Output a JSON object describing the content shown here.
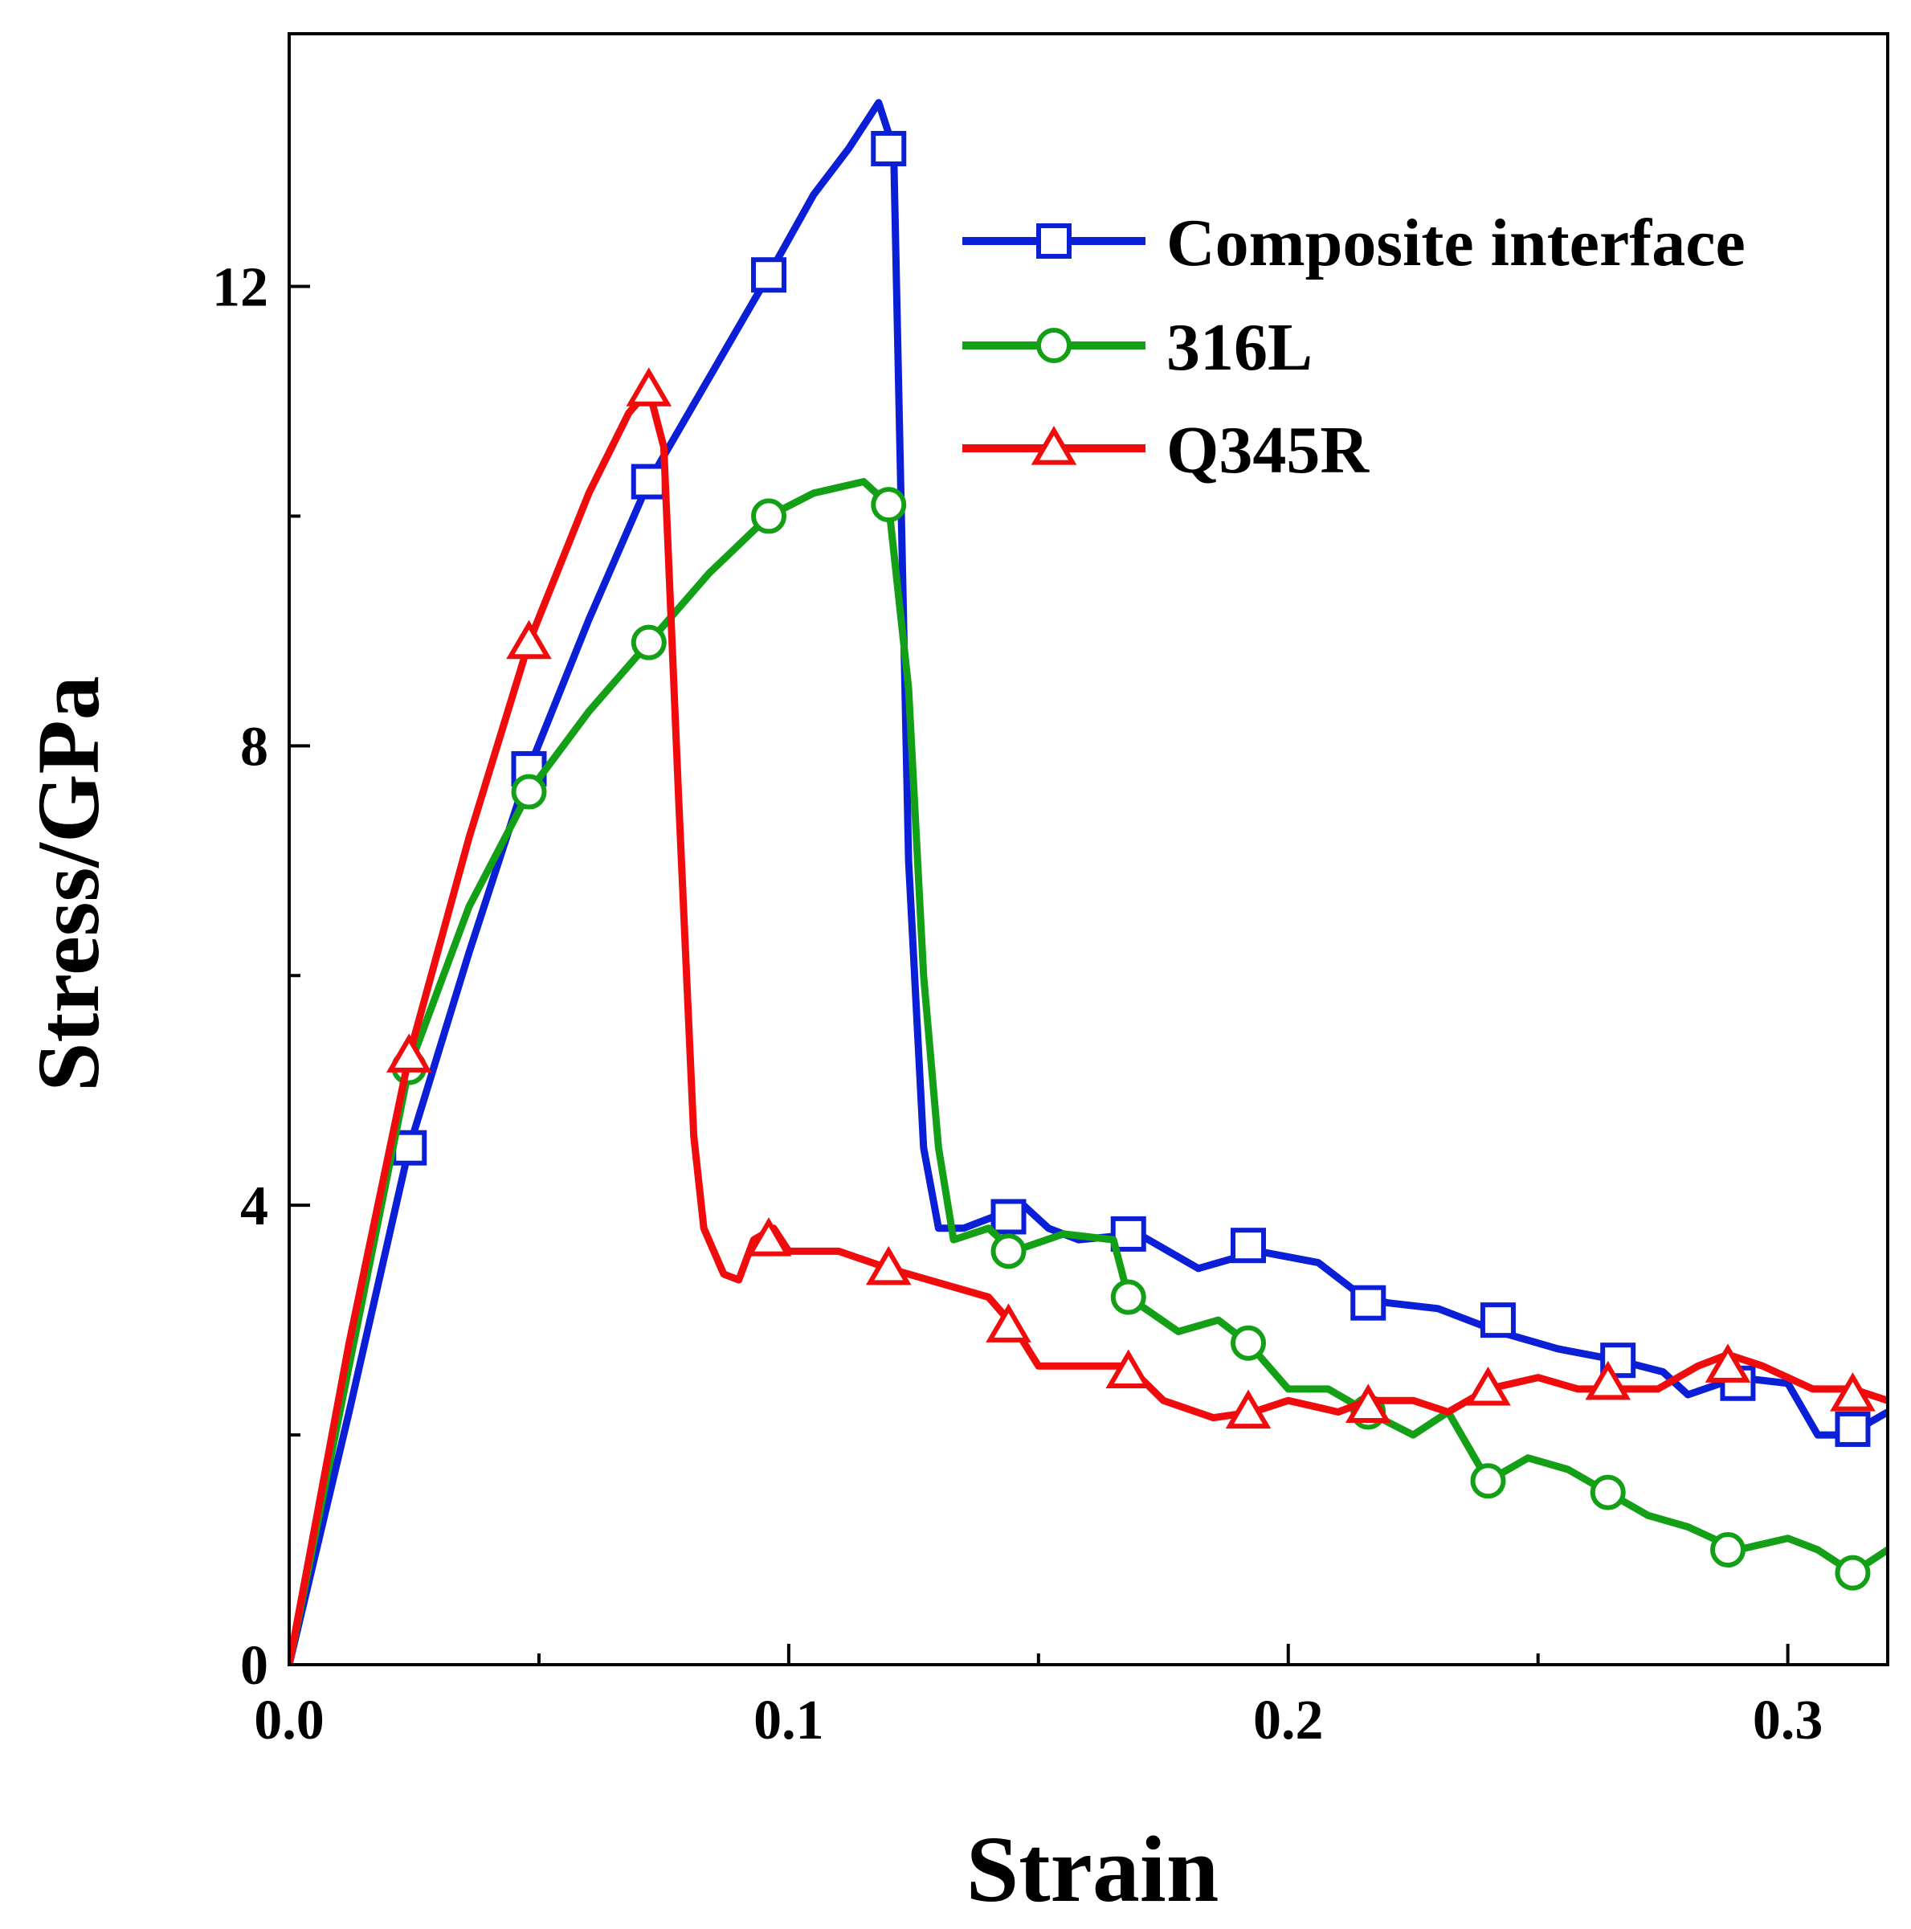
{
  "chart_data": {
    "type": "line",
    "title": "",
    "xlabel": "Strain",
    "ylabel": "Stress/GPa",
    "xlim": [
      0.0,
      0.32
    ],
    "ylim": [
      0,
      14.2
    ],
    "xticks": [
      0.0,
      0.1,
      0.2,
      0.3
    ],
    "xtick_labels": [
      "0.0",
      "0.1",
      "0.2",
      "0.3"
    ],
    "xminor": [
      0.05,
      0.15,
      0.25
    ],
    "yticks": [
      0,
      4,
      8,
      12
    ],
    "ytick_labels": [
      "0",
      "4",
      "8",
      "12"
    ],
    "yminor": [
      2,
      6,
      10
    ],
    "grid": false,
    "legend_position": "top-right",
    "series": [
      {
        "name": "Composite interface",
        "color": "#0a1fd6",
        "marker": "square",
        "x": [
          0.0,
          0.012,
          0.024,
          0.036,
          0.048,
          0.06,
          0.072,
          0.084,
          0.096,
          0.105,
          0.112,
          0.118,
          0.121,
          0.124,
          0.127,
          0.13,
          0.135,
          0.147,
          0.152,
          0.158,
          0.17,
          0.182,
          0.194,
          0.206,
          0.215,
          0.22,
          0.23,
          0.242,
          0.254,
          0.266,
          0.275,
          0.28,
          0.29,
          0.3,
          0.306,
          0.312,
          0.32
        ],
        "y": [
          0,
          2.2,
          4.5,
          6.2,
          7.8,
          9.1,
          10.3,
          11.2,
          12.1,
          12.8,
          13.2,
          13.6,
          13.2,
          7.0,
          4.5,
          3.8,
          3.8,
          4.0,
          3.8,
          3.7,
          3.75,
          3.45,
          3.6,
          3.5,
          3.2,
          3.15,
          3.1,
          2.9,
          2.75,
          2.65,
          2.55,
          2.35,
          2.5,
          2.45,
          2.0,
          2.0,
          2.2
        ],
        "marker_x": [
          0.024,
          0.048,
          0.072,
          0.096,
          0.12,
          0.144,
          0.168,
          0.192,
          0.216,
          0.242,
          0.266,
          0.29,
          0.313
        ],
        "marker_y": [
          4.5,
          7.8,
          10.3,
          12.1,
          13.2,
          3.9,
          3.75,
          3.65,
          3.15,
          3.0,
          2.65,
          2.45,
          2.05
        ]
      },
      {
        "name": "316L",
        "color": "#14a016",
        "marker": "circle",
        "x": [
          0.0,
          0.012,
          0.024,
          0.036,
          0.048,
          0.06,
          0.072,
          0.084,
          0.096,
          0.105,
          0.115,
          0.12,
          0.124,
          0.127,
          0.13,
          0.133,
          0.14,
          0.145,
          0.155,
          0.165,
          0.168,
          0.178,
          0.186,
          0.192,
          0.2,
          0.208,
          0.216,
          0.225,
          0.232,
          0.24,
          0.248,
          0.256,
          0.264,
          0.272,
          0.28,
          0.29,
          0.3,
          0.306,
          0.313,
          0.32
        ],
        "y": [
          0,
          2.6,
          5.2,
          6.6,
          7.6,
          8.3,
          8.9,
          9.5,
          10.0,
          10.2,
          10.3,
          10.1,
          8.5,
          6.0,
          4.5,
          3.7,
          3.8,
          3.6,
          3.75,
          3.7,
          3.2,
          2.9,
          3.0,
          2.8,
          2.4,
          2.4,
          2.2,
          2.0,
          2.2,
          1.6,
          1.8,
          1.7,
          1.5,
          1.3,
          1.2,
          1.0,
          1.1,
          1.0,
          0.8,
          1.0
        ],
        "marker_x": [
          0.024,
          0.048,
          0.072,
          0.096,
          0.12,
          0.144,
          0.168,
          0.192,
          0.216,
          0.24,
          0.264,
          0.288,
          0.313
        ],
        "marker_y": [
          5.2,
          7.6,
          8.9,
          10.0,
          10.1,
          3.6,
          3.2,
          2.8,
          2.2,
          1.6,
          1.5,
          1.0,
          0.8
        ]
      },
      {
        "name": "Q345R",
        "color": "#f00c0c",
        "marker": "triangle",
        "x": [
          0.0,
          0.012,
          0.024,
          0.036,
          0.048,
          0.06,
          0.068,
          0.072,
          0.075,
          0.078,
          0.081,
          0.083,
          0.087,
          0.09,
          0.093,
          0.097,
          0.1,
          0.11,
          0.12,
          0.132,
          0.14,
          0.145,
          0.15,
          0.16,
          0.168,
          0.175,
          0.185,
          0.193,
          0.2,
          0.21,
          0.216,
          0.225,
          0.232,
          0.24,
          0.25,
          0.258,
          0.266,
          0.274,
          0.282,
          0.288,
          0.295,
          0.305,
          0.313,
          0.32
        ],
        "y": [
          0,
          2.8,
          5.3,
          7.2,
          8.9,
          10.2,
          10.9,
          11.1,
          10.6,
          7.5,
          4.6,
          3.8,
          3.4,
          3.35,
          3.7,
          3.8,
          3.6,
          3.6,
          3.45,
          3.3,
          3.2,
          2.95,
          2.6,
          2.6,
          2.6,
          2.3,
          2.15,
          2.2,
          2.3,
          2.2,
          2.3,
          2.3,
          2.2,
          2.4,
          2.5,
          2.4,
          2.4,
          2.4,
          2.6,
          2.7,
          2.6,
          2.4,
          2.4,
          2.3
        ],
        "marker_x": [
          0.024,
          0.048,
          0.072,
          0.096,
          0.12,
          0.144,
          0.168,
          0.192,
          0.216,
          0.24,
          0.264,
          0.288,
          0.313
        ],
        "marker_y": [
          5.3,
          8.9,
          11.1,
          3.7,
          3.45,
          2.95,
          2.55,
          2.2,
          2.25,
          2.4,
          2.45,
          2.6,
          2.35
        ]
      }
    ]
  }
}
